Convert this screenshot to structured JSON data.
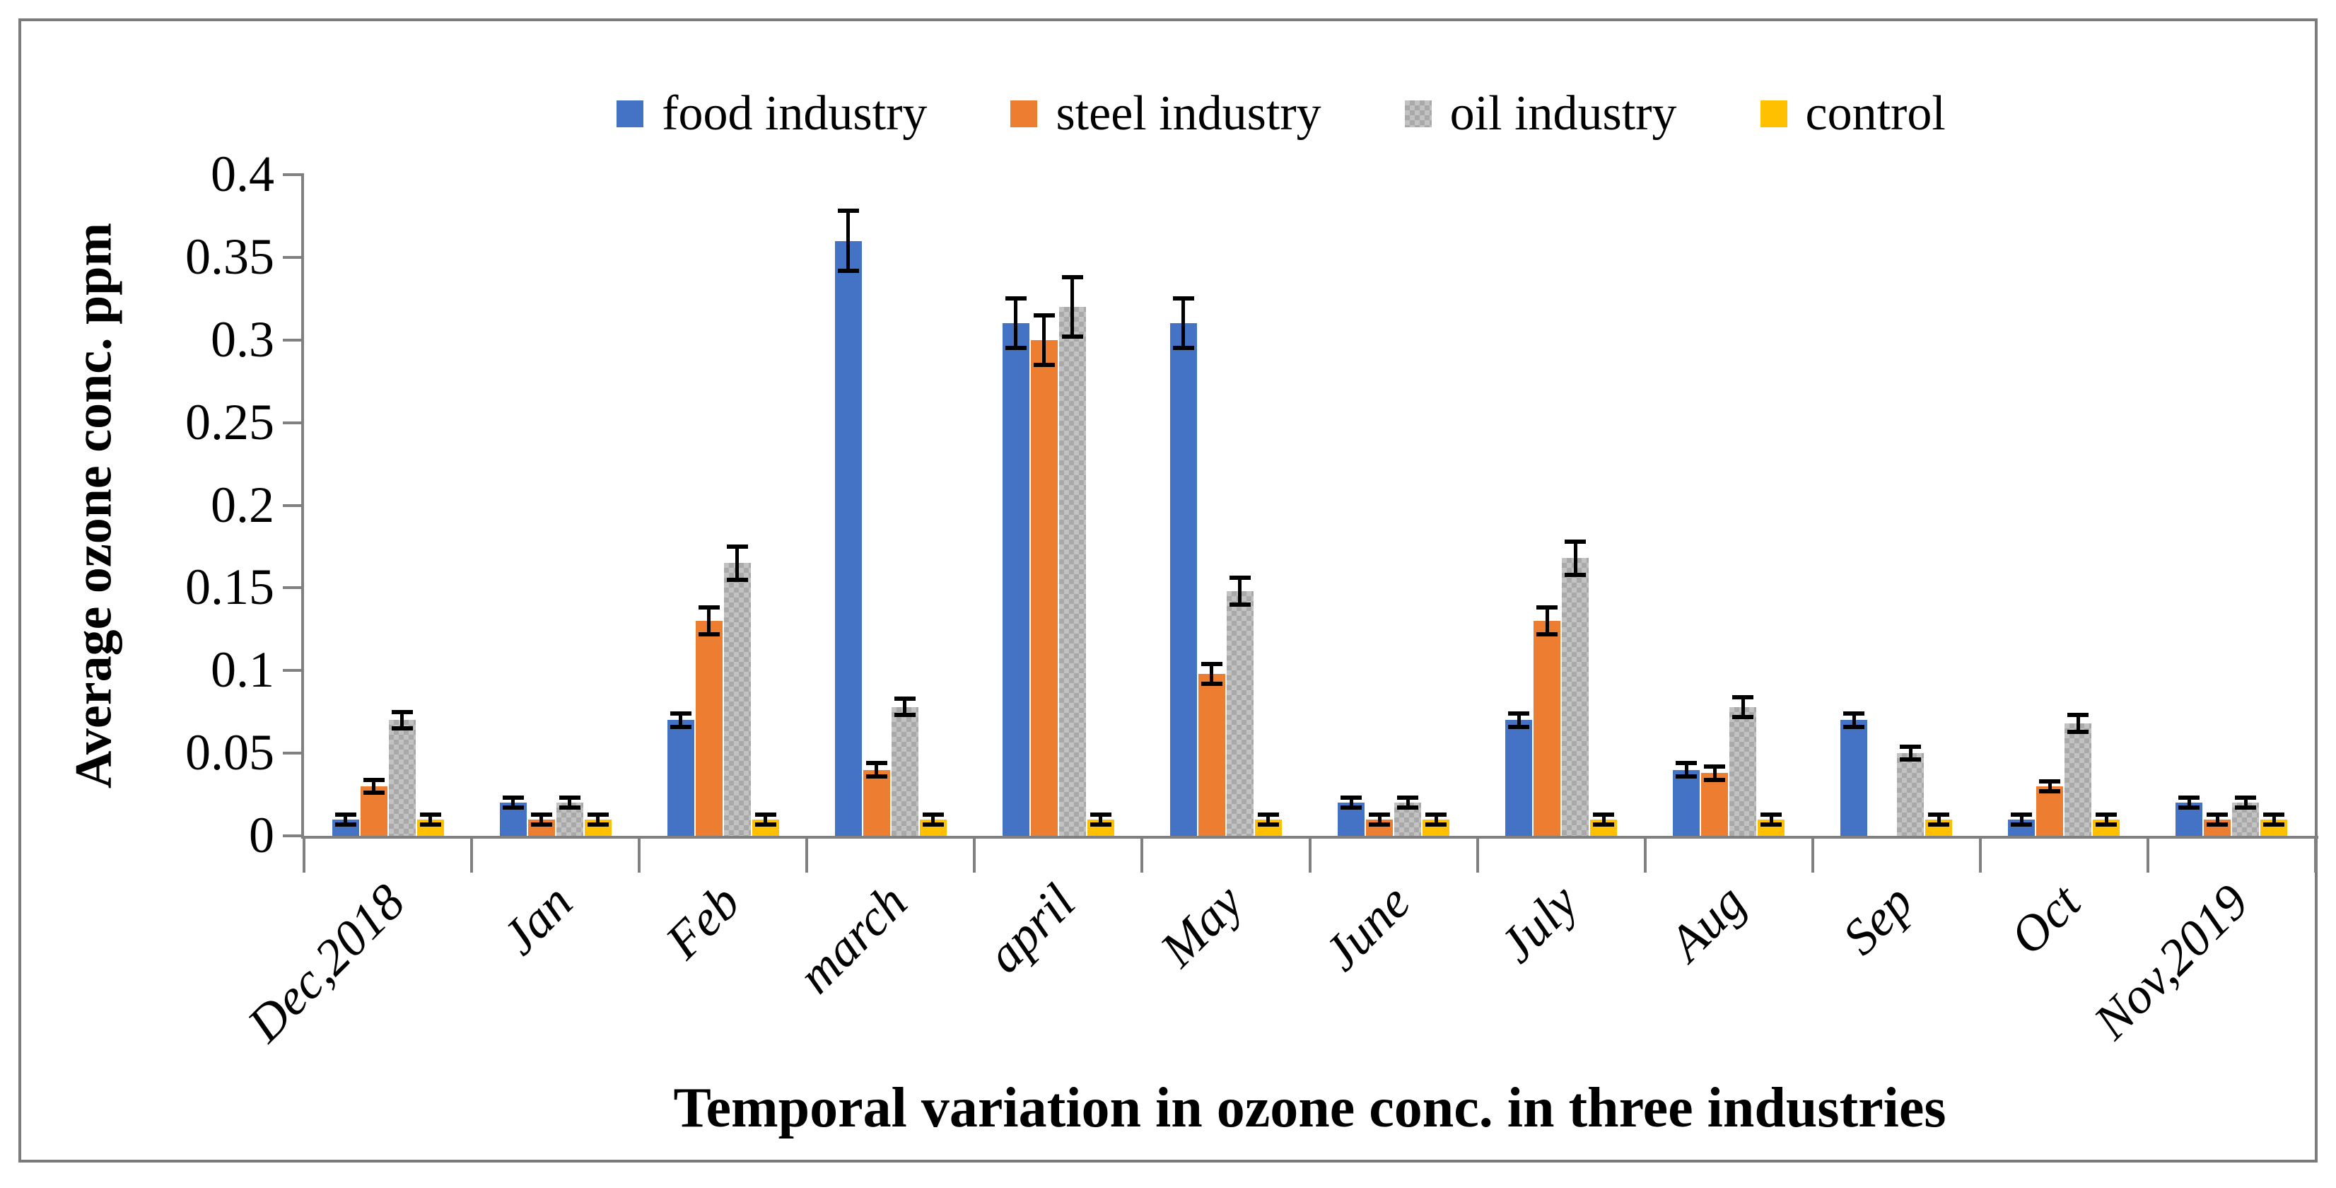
{
  "figure": {
    "y_axis_title": "Average ozone conc. ppm",
    "x_axis_title": "Temporal variation in ozone conc. in three industries"
  },
  "chart_data": {
    "type": "bar",
    "title": "",
    "xlabel": "Temporal variation in ozone conc. in three industries",
    "ylabel": "Average ozone conc. ppm",
    "ylim": [
      0,
      0.4
    ],
    "ytick_step": 0.05,
    "ytick_labels": [
      "0",
      "0.05",
      "0.1",
      "0.15",
      "0.2",
      "0.25",
      "0.3",
      "0.35",
      "0.4"
    ],
    "grid": false,
    "legend_position": "top",
    "axis_color": "#808080",
    "error_bar_color": "#000000",
    "categories": [
      "Dec,2018",
      "Jan",
      "Feb",
      "march",
      "april",
      "May",
      "June",
      "July",
      "Aug",
      "Sep",
      "Oct",
      "Nov,2019"
    ],
    "series": [
      {
        "name": "food industry",
        "color": "#4472C4",
        "pattern": "solid",
        "values": [
          0.01,
          0.02,
          0.07,
          0.36,
          0.31,
          0.31,
          0.02,
          0.07,
          0.04,
          0.07,
          0.01,
          0.02
        ],
        "errors": [
          0.003,
          0.003,
          0.004,
          0.018,
          0.015,
          0.015,
          0.003,
          0.004,
          0.004,
          0.004,
          0.003,
          0.003
        ]
      },
      {
        "name": "steel industry",
        "color": "#ED7D31",
        "pattern": "solid",
        "values": [
          0.03,
          0.01,
          0.13,
          0.04,
          0.3,
          0.098,
          0.01,
          0.13,
          0.038,
          0,
          0.03,
          0.01
        ],
        "errors": [
          0.004,
          0.003,
          0.008,
          0.004,
          0.015,
          0.006,
          0.003,
          0.008,
          0.004,
          0,
          0.003,
          0.003
        ]
      },
      {
        "name": "oil industry",
        "color": "#C2C2C2",
        "pattern": "checker",
        "pattern_color": "#A9A9A9",
        "values": [
          0.07,
          0.02,
          0.165,
          0.078,
          0.32,
          0.148,
          0.02,
          0.168,
          0.078,
          0.05,
          0.068,
          0.02
        ],
        "errors": [
          0.005,
          0.003,
          0.01,
          0.005,
          0.018,
          0.008,
          0.003,
          0.01,
          0.006,
          0.004,
          0.005,
          0.003
        ]
      },
      {
        "name": "control",
        "color": "#FFC000",
        "pattern": "solid",
        "values": [
          0.01,
          0.01,
          0.01,
          0.01,
          0.01,
          0.01,
          0.01,
          0.01,
          0.01,
          0.01,
          0.01,
          0.01
        ],
        "errors": [
          0.003,
          0.003,
          0.003,
          0.003,
          0.003,
          0.003,
          0.003,
          0.003,
          0.003,
          0.003,
          0.003,
          0.003
        ]
      }
    ]
  }
}
